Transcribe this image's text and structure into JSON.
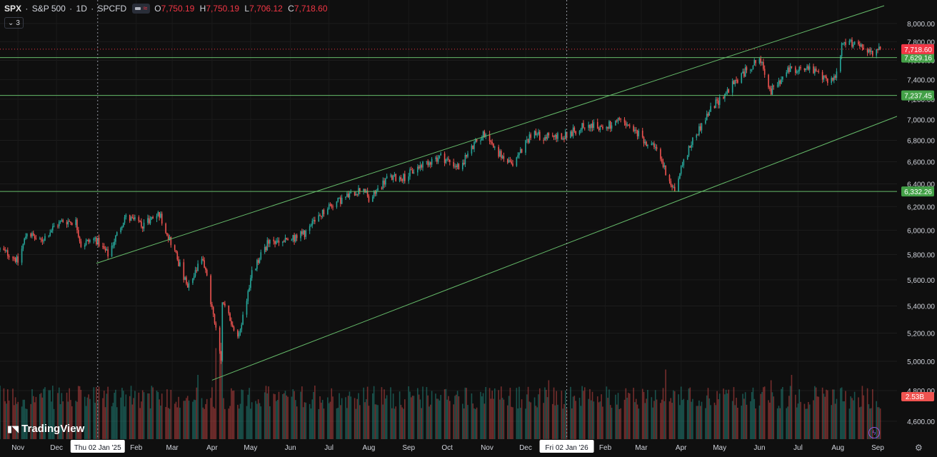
{
  "header": {
    "symbol": "SPX",
    "name": "S&P 500",
    "interval": "1D",
    "exchange": "SPCFD",
    "open_label": "O",
    "open": "7,750.19",
    "high_label": "H",
    "high": "7,750.19",
    "low_label": "L",
    "low": "7,706.12",
    "close_label": "C",
    "close": "7,718.60",
    "indicator_count": "3"
  },
  "brand": "TradingView",
  "colors": {
    "up": "#26a69a",
    "down": "#ef5350",
    "background": "#0f0f0f",
    "line": "#66bb6a",
    "price_tag": "#f23645"
  },
  "icons": [
    "chevron-down-icon",
    "tradingview-logo-icon",
    "lightning-icon",
    "gear-icon"
  ],
  "chart_data": {
    "type": "candlestick",
    "title": "",
    "xlabel": "",
    "ylabel": "",
    "y_axis_side": "right",
    "yscale": "log",
    "ylim": [
      4500,
      8200
    ],
    "y_ticks": [
      4600,
      4800,
      5000,
      5200,
      5400,
      5600,
      5800,
      6000,
      6200,
      6400,
      6600,
      6800,
      7000,
      7200,
      7400,
      7600,
      7800,
      8000
    ],
    "y_tick_labels": [
      "4,600.00",
      "4,800.00",
      "5,000.00",
      "5,200.00",
      "5,400.00",
      "5,600.00",
      "5,800.00",
      "6,000.00",
      "6,200.00",
      "6,400.00",
      "6,600.00",
      "6,800.00",
      "7,000.00",
      "7,200.00",
      "7,400.00",
      "7,600.00",
      "7,800.00",
      "8,000.00"
    ],
    "x_range": [
      "2024-10-18",
      "2026-09-16"
    ],
    "x_ticks": [
      {
        "date": "2024-11-01",
        "label": "Nov"
      },
      {
        "date": "2024-12-01",
        "label": "Dec"
      },
      {
        "date": "2025-02-01",
        "label": "Feb"
      },
      {
        "date": "2025-03-01",
        "label": "Mar"
      },
      {
        "date": "2025-04-01",
        "label": "Apr"
      },
      {
        "date": "2025-05-01",
        "label": "May"
      },
      {
        "date": "2025-06-01",
        "label": "Jun"
      },
      {
        "date": "2025-07-01",
        "label": "Jul"
      },
      {
        "date": "2025-08-01",
        "label": "Aug"
      },
      {
        "date": "2025-09-01",
        "label": "Sep"
      },
      {
        "date": "2025-10-01",
        "label": "Oct"
      },
      {
        "date": "2025-11-01",
        "label": "Nov"
      },
      {
        "date": "2025-12-01",
        "label": "Dec"
      },
      {
        "date": "2026-02-01",
        "label": "Feb"
      },
      {
        "date": "2026-03-01",
        "label": "Mar"
      },
      {
        "date": "2026-04-01",
        "label": "Apr"
      },
      {
        "date": "2026-05-01",
        "label": "May"
      },
      {
        "date": "2026-06-01",
        "label": "Jun"
      },
      {
        "date": "2026-07-01",
        "label": "Jul"
      },
      {
        "date": "2026-08-01",
        "label": "Aug"
      },
      {
        "date": "2026-09-01",
        "label": "Sep"
      }
    ],
    "date_markers": [
      {
        "date": "2025-01-02",
        "label": "Thu 02 Jan '25"
      },
      {
        "date": "2026-01-02",
        "label": "Fri 02 Jan '26"
      }
    ],
    "price_path": [
      [
        "2024-10-18",
        5840
      ],
      [
        "2024-10-28",
        5790
      ],
      [
        "2024-11-01",
        5740
      ],
      [
        "2024-11-08",
        5990
      ],
      [
        "2024-11-18",
        5900
      ],
      [
        "2024-11-29",
        6030
      ],
      [
        "2024-12-06",
        6080
      ],
      [
        "2024-12-16",
        6070
      ],
      [
        "2024-12-20",
        5880
      ],
      [
        "2024-12-31",
        5930
      ],
      [
        "2025-01-10",
        5800
      ],
      [
        "2025-01-23",
        6110
      ],
      [
        "2025-02-06",
        6050
      ],
      [
        "2025-02-19",
        6140
      ],
      [
        "2025-03-04",
        5800
      ],
      [
        "2025-03-13",
        5530
      ],
      [
        "2025-03-25",
        5780
      ],
      [
        "2025-04-08",
        5000
      ],
      [
        "2025-04-09",
        5450
      ],
      [
        "2025-04-21",
        5150
      ],
      [
        "2025-05-02",
        5650
      ],
      [
        "2025-05-14",
        5890
      ],
      [
        "2025-05-30",
        5910
      ],
      [
        "2025-06-13",
        5980
      ],
      [
        "2025-06-30",
        6200
      ],
      [
        "2025-07-14",
        6280
      ],
      [
        "2025-07-28",
        6370
      ],
      [
        "2025-08-01",
        6250
      ],
      [
        "2025-08-15",
        6450
      ],
      [
        "2025-08-29",
        6460
      ],
      [
        "2025-09-12",
        6580
      ],
      [
        "2025-09-26",
        6650
      ],
      [
        "2025-10-10",
        6550
      ],
      [
        "2025-10-24",
        6790
      ],
      [
        "2025-10-31",
        6880
      ],
      [
        "2025-11-07",
        6720
      ],
      [
        "2025-11-20",
        6560
      ],
      [
        "2025-12-05",
        6860
      ],
      [
        "2025-12-19",
        6830
      ],
      [
        "2026-01-02",
        6850
      ],
      [
        "2026-01-16",
        6950
      ],
      [
        "2026-01-30",
        6920
      ],
      [
        "2026-02-13",
        6980
      ],
      [
        "2026-02-27",
        6850
      ],
      [
        "2026-03-13",
        6700
      ],
      [
        "2026-03-27",
        6340
      ],
      [
        "2026-04-02",
        6580
      ],
      [
        "2026-04-10",
        6800
      ],
      [
        "2026-04-24",
        7100
      ],
      [
        "2026-05-08",
        7300
      ],
      [
        "2026-05-22",
        7500
      ],
      [
        "2026-06-01",
        7620
      ],
      [
        "2026-06-10",
        7280
      ],
      [
        "2026-06-24",
        7500
      ],
      [
        "2026-07-08",
        7530
      ],
      [
        "2026-07-22",
        7400
      ],
      [
        "2026-07-30",
        7420
      ],
      [
        "2026-08-04",
        7750
      ],
      [
        "2026-08-14",
        7800
      ],
      [
        "2026-08-28",
        7680
      ],
      [
        "2026-09-03",
        7718.6
      ]
    ],
    "volume_scale": "relative",
    "volume_label": "2.53B",
    "volume_spikes": [
      [
        "2025-01-31",
        0.45
      ],
      [
        "2025-03-21",
        0.6
      ],
      [
        "2025-04-04",
        0.85
      ],
      [
        "2025-04-07",
        0.95
      ],
      [
        "2025-04-08",
        0.9
      ],
      [
        "2025-04-09",
        1.0
      ],
      [
        "2025-06-20",
        0.5
      ],
      [
        "2025-09-19",
        0.45
      ],
      [
        "2025-10-10",
        0.4
      ],
      [
        "2025-12-19",
        0.55
      ],
      [
        "2026-03-20",
        0.65
      ],
      [
        "2026-06-10",
        0.55
      ],
      [
        "2026-06-26",
        0.6
      ]
    ],
    "last_price": {
      "value": 7718.6,
      "label": "7,718.60"
    },
    "horizontal_levels": [
      {
        "value": 7629.16,
        "label": "7,629.16"
      },
      {
        "value": 7237.45,
        "label": "7,237.45"
      },
      {
        "value": 6332.26,
        "label": "6,332.26"
      }
    ],
    "trendlines": [
      {
        "role": "channel-upper",
        "points": [
          [
            "2025-01-01",
            5730
          ],
          [
            "2026-09-06",
            8200
          ]
        ]
      },
      {
        "role": "channel-lower",
        "points": [
          [
            "2025-04-01",
            4870
          ],
          [
            "2026-09-20",
            7050
          ]
        ]
      }
    ],
    "grid": true
  }
}
